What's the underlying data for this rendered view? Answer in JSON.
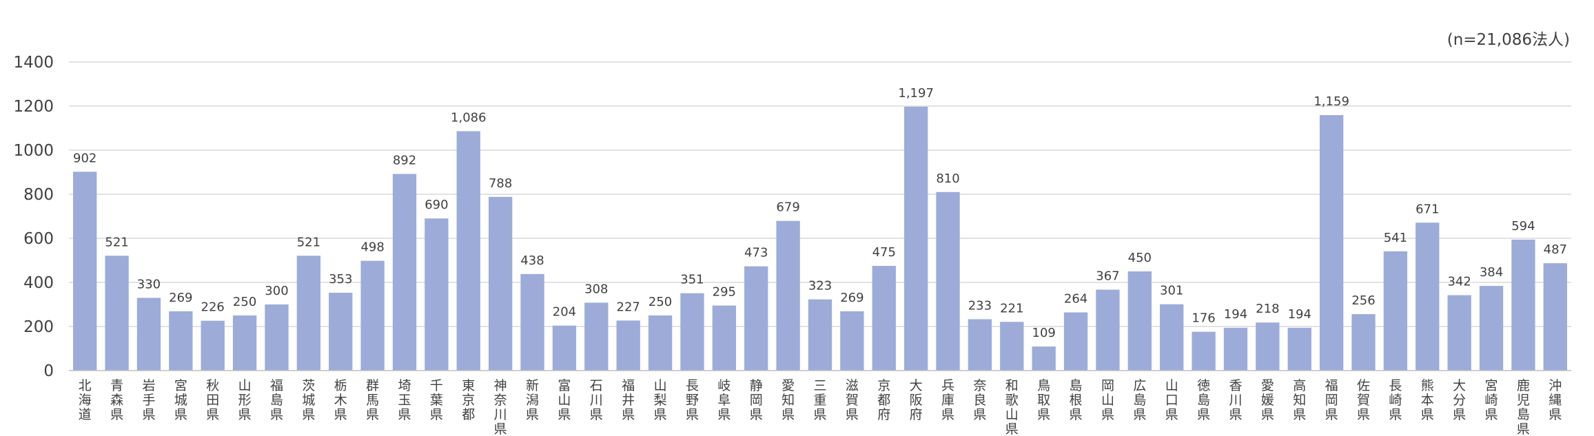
{
  "note": "(n=21,086法人)",
  "chart_data": {
    "type": "bar",
    "ylim": [
      0,
      1400
    ],
    "yticks": [
      "0",
      "200",
      "400",
      "600",
      "800",
      "1000",
      "1200",
      "1400"
    ],
    "ytick_values": [
      0,
      200,
      400,
      600,
      800,
      1000,
      1200,
      1400
    ],
    "grid": true,
    "categories": [
      "北海道",
      "青森県",
      "岩手県",
      "宮城県",
      "秋田県",
      "山形県",
      "福島県",
      "茨城県",
      "栃木県",
      "群馬県",
      "埼玉県",
      "千葉県",
      "東京都",
      "神奈川県",
      "新潟県",
      "富山県",
      "石川県",
      "福井県",
      "山梨県",
      "長野県",
      "岐阜県",
      "静岡県",
      "愛知県",
      "三重県",
      "滋賀県",
      "京都府",
      "大阪府",
      "兵庫県",
      "奈良県",
      "和歌山県",
      "鳥取県",
      "島根県",
      "岡山県",
      "広島県",
      "山口県",
      "徳島県",
      "香川県",
      "愛媛県",
      "高知県",
      "福岡県",
      "佐賀県",
      "長崎県",
      "熊本県",
      "大分県",
      "宮崎県",
      "鹿児島県",
      "沖縄県"
    ],
    "values": [
      902,
      521,
      330,
      269,
      226,
      250,
      300,
      521,
      353,
      498,
      892,
      690,
      1086,
      788,
      438,
      204,
      308,
      227,
      250,
      351,
      295,
      473,
      679,
      323,
      269,
      475,
      1197,
      810,
      233,
      221,
      109,
      264,
      367,
      450,
      301,
      176,
      194,
      218,
      194,
      1159,
      256,
      541,
      671,
      342,
      384,
      594,
      487
    ],
    "data_labels": [
      "902",
      "521",
      "330",
      "269",
      "226",
      "250",
      "300",
      "521",
      "353",
      "498",
      "892",
      "690",
      "1,086",
      "788",
      "438",
      "204",
      "308",
      "227",
      "250",
      "351",
      "295",
      "473",
      "679",
      "323",
      "269",
      "475",
      "1,197",
      "810",
      "233",
      "221",
      "109",
      "264",
      "367",
      "450",
      "301",
      "176",
      "194",
      "218",
      "194",
      "1,159",
      "256",
      "541",
      "671",
      "342",
      "384",
      "594",
      "487"
    ],
    "bar_color": "#9dabd9",
    "grid_color": "#d9d9d9"
  }
}
